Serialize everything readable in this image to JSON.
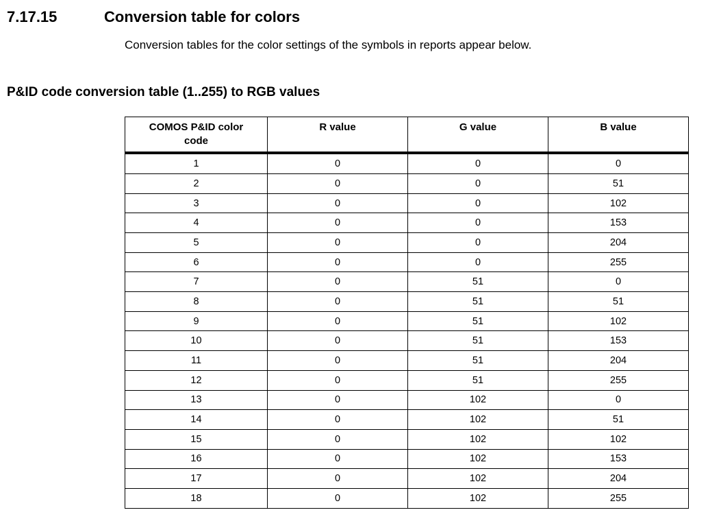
{
  "page": {
    "section_number": "7.17.15",
    "section_title": "Conversion table for colors",
    "intro_text": "Conversion tables for the color settings of the symbols in reports appear below.",
    "table_heading": "P&ID code conversion table (1..255) to RGB values"
  },
  "conversion_table": {
    "headers": [
      "COMOS P&ID color code",
      "R value",
      "G value",
      "B value"
    ],
    "rows": [
      [
        "1",
        "0",
        "0",
        "0"
      ],
      [
        "2",
        "0",
        "0",
        "51"
      ],
      [
        "3",
        "0",
        "0",
        "102"
      ],
      [
        "4",
        "0",
        "0",
        "153"
      ],
      [
        "5",
        "0",
        "0",
        "204"
      ],
      [
        "6",
        "0",
        "0",
        "255"
      ],
      [
        "7",
        "0",
        "51",
        "0"
      ],
      [
        "8",
        "0",
        "51",
        "51"
      ],
      [
        "9",
        "0",
        "51",
        "102"
      ],
      [
        "10",
        "0",
        "51",
        "153"
      ],
      [
        "11",
        "0",
        "51",
        "204"
      ],
      [
        "12",
        "0",
        "51",
        "255"
      ],
      [
        "13",
        "0",
        "102",
        "0"
      ],
      [
        "14",
        "0",
        "102",
        "51"
      ],
      [
        "15",
        "0",
        "102",
        "102"
      ],
      [
        "16",
        "0",
        "102",
        "153"
      ],
      [
        "17",
        "0",
        "102",
        "204"
      ],
      [
        "18",
        "0",
        "102",
        "255"
      ]
    ]
  },
  "colors": {
    "text": "#000000",
    "border": "#000000",
    "background": "#ffffff"
  }
}
